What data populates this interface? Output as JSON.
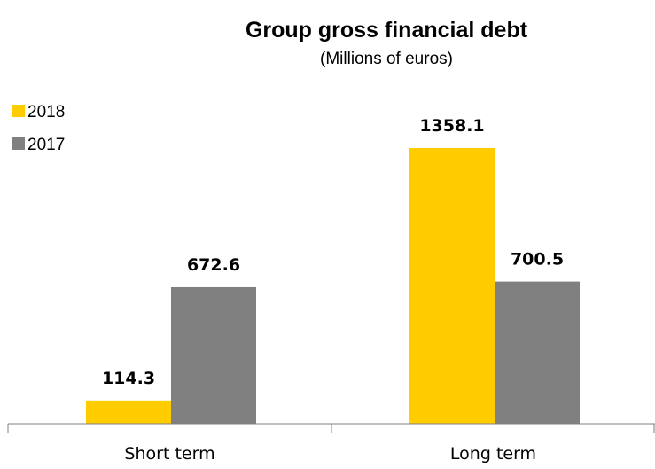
{
  "chart_data": {
    "type": "bar",
    "title": "Group gross financial debt",
    "subtitle": "(Millions of euros)",
    "categories": [
      "Short term",
      "Long term"
    ],
    "series": [
      {
        "name": "2018",
        "values": [
          114.3,
          1358.1
        ],
        "color": "#FFCC00"
      },
      {
        "name": "2017",
        "values": [
          672.6,
          700.5
        ],
        "color": "#808080"
      }
    ],
    "ylim": [
      0,
      1470
    ],
    "grid": false,
    "legend_position": "top-left",
    "axis_color": "#7f7f7f"
  }
}
